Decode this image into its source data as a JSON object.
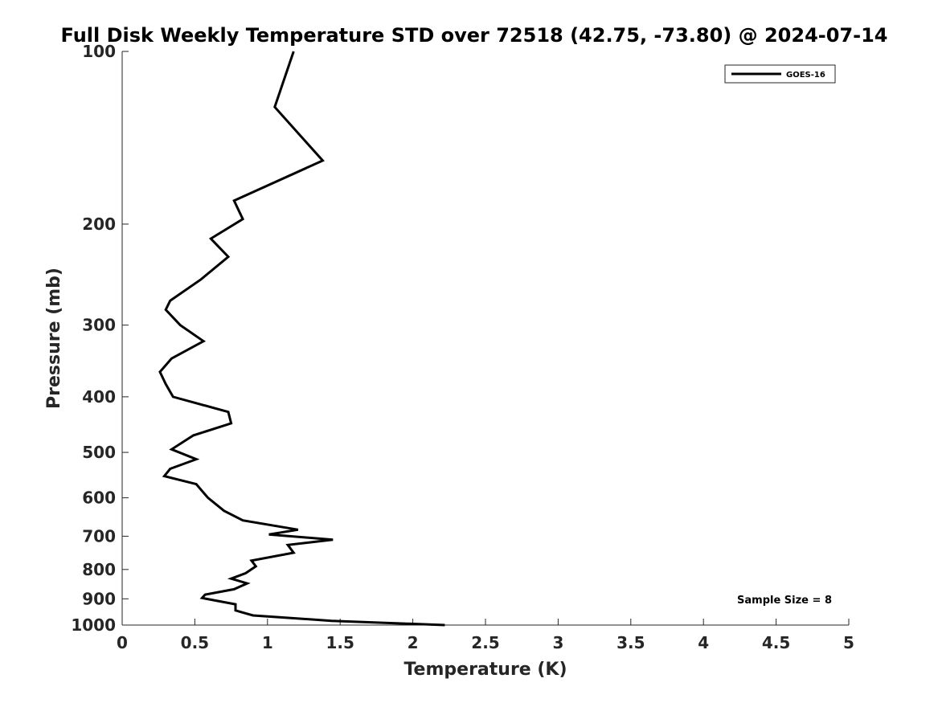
{
  "chart_data": {
    "type": "line",
    "title": "Full Disk Weekly Temperature STD over 72518 (42.75, -73.80) @ 2024-07-14",
    "xlabel": "Temperature (K)",
    "ylabel": "Pressure (mb)",
    "xlim": [
      0,
      5
    ],
    "ylim": [
      1000,
      100
    ],
    "yscale": "log",
    "x_ticks": [
      0,
      0.5,
      1,
      1.5,
      2,
      2.5,
      3,
      3.5,
      4,
      4.5,
      5
    ],
    "x_tick_labels": [
      "0",
      "0.5",
      "1",
      "1.5",
      "2",
      "2.5",
      "3",
      "3.5",
      "4",
      "4.5",
      "5"
    ],
    "y_ticks": [
      100,
      200,
      300,
      400,
      500,
      600,
      700,
      800,
      900,
      1000
    ],
    "y_tick_labels": [
      "100",
      "200",
      "300",
      "400",
      "500",
      "600",
      "700",
      "800",
      "900",
      "1000"
    ],
    "legend": {
      "location": "top-right",
      "entries": [
        "GOES-16"
      ]
    },
    "annotation": "Sample Size = 8",
    "series": [
      {
        "name": "GOES-16",
        "color": "#000000",
        "points": [
          [
            1.18,
            100
          ],
          [
            1.05,
            125
          ],
          [
            1.38,
            155
          ],
          [
            0.77,
            182
          ],
          [
            0.83,
            196
          ],
          [
            0.61,
            212
          ],
          [
            0.73,
            228
          ],
          [
            0.54,
            250
          ],
          [
            0.33,
            272
          ],
          [
            0.3,
            282
          ],
          [
            0.4,
            300
          ],
          [
            0.56,
            320
          ],
          [
            0.34,
            343
          ],
          [
            0.26,
            362
          ],
          [
            0.3,
            380
          ],
          [
            0.35,
            400
          ],
          [
            0.73,
            425
          ],
          [
            0.75,
            445
          ],
          [
            0.49,
            467
          ],
          [
            0.34,
            494
          ],
          [
            0.51,
            514
          ],
          [
            0.33,
            534
          ],
          [
            0.29,
            550
          ],
          [
            0.51,
            568
          ],
          [
            0.59,
            600
          ],
          [
            0.7,
            632
          ],
          [
            0.83,
            657
          ],
          [
            1.21,
            682
          ],
          [
            1.01,
            695
          ],
          [
            1.45,
            710
          ],
          [
            1.14,
            725
          ],
          [
            1.18,
            748
          ],
          [
            0.89,
            772
          ],
          [
            0.92,
            790
          ],
          [
            0.85,
            812
          ],
          [
            0.75,
            830
          ],
          [
            0.86,
            846
          ],
          [
            0.77,
            866
          ],
          [
            0.57,
            885
          ],
          [
            0.55,
            897
          ],
          [
            0.78,
            920
          ],
          [
            0.78,
            943
          ],
          [
            0.9,
            962
          ],
          [
            1.44,
            983
          ],
          [
            2.22,
            1000
          ]
        ]
      }
    ]
  }
}
